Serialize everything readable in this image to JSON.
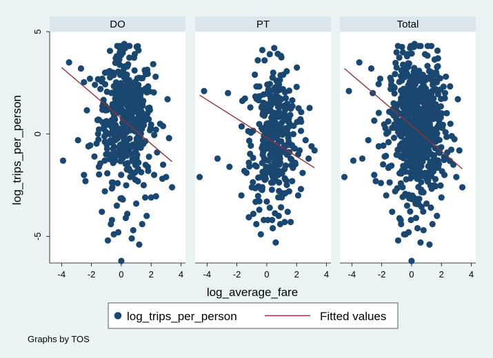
{
  "chart_data": {
    "type": "scatter",
    "layout": "by-group panels",
    "xlabel": "log_average_fare",
    "ylabel": "log_trips_per_person",
    "xlim": [
      -4.8,
      4.3
    ],
    "ylim": [
      -6.3,
      5.0
    ],
    "x_ticks": [
      -4,
      -2,
      0,
      2,
      4
    ],
    "y_ticks": [
      -5,
      0,
      5
    ],
    "grid": false,
    "legend": {
      "position": "bottom-center",
      "labels": [
        "log_trips_per_person",
        "Fitted values"
      ]
    },
    "note": "Graphs by TOS",
    "colors": {
      "points": "#1a476f",
      "fit": "#90353b",
      "panel_header": "#d9e6eb",
      "background": "#eaf2f3",
      "plot": "#ffffff"
    },
    "panels": [
      {
        "name": "DO",
        "fit": {
          "x": [
            -4.0,
            3.4
          ],
          "y": [
            3.25,
            -1.35
          ]
        },
        "points": [
          [
            -3.9,
            -1.3
          ],
          [
            -3.5,
            3.5
          ],
          [
            -2.9,
            -0.3
          ],
          [
            -2.7,
            3.2
          ],
          [
            -2.5,
            -2.0
          ],
          [
            -2.4,
            -2.3
          ],
          [
            -2.2,
            -0.6
          ],
          [
            -2.1,
            2.7
          ],
          [
            -1.8,
            -1.1
          ],
          [
            -1.5,
            -1.6
          ],
          [
            -1.3,
            -3.8
          ],
          [
            -1.2,
            1.5
          ],
          [
            -1.1,
            -2.8
          ],
          [
            -0.9,
            -5.2
          ],
          [
            -0.8,
            -1.0
          ],
          [
            -0.6,
            -2.6
          ],
          [
            -0.5,
            -4.9
          ],
          [
            -0.4,
            -0.3
          ],
          [
            -0.3,
            -3.5
          ],
          [
            -0.2,
            -4.8
          ],
          [
            0.0,
            -6.2
          ],
          [
            0.1,
            -3.2
          ],
          [
            0.3,
            -4.1
          ],
          [
            0.4,
            -3.9
          ],
          [
            0.6,
            -2.1
          ],
          [
            0.8,
            -4.7
          ],
          [
            1.0,
            -3.4
          ],
          [
            1.2,
            -5.4
          ],
          [
            1.5,
            -2.5
          ],
          [
            1.7,
            -4.0
          ],
          [
            2.0,
            -3.1
          ],
          [
            2.2,
            -2.0
          ],
          [
            2.4,
            -0.9
          ],
          [
            2.6,
            0.5
          ],
          [
            2.8,
            -1.5
          ],
          [
            3.0,
            -2.1
          ],
          [
            3.2,
            -0.2
          ],
          [
            3.4,
            -2.6
          ],
          [
            3.1,
            1.7
          ],
          [
            2.3,
            2.8
          ],
          [
            1.8,
            -1.8
          ],
          [
            0.9,
            3.9
          ],
          [
            0.5,
            4.3
          ],
          [
            0.2,
            4.4
          ],
          [
            -0.1,
            4.2
          ],
          [
            -0.3,
            3.8
          ],
          [
            -1.4,
            2.2
          ],
          [
            1.6,
            -3.1
          ],
          [
            1.4,
            -4.4
          ],
          [
            -0.7,
            -4.4
          ],
          [
            0.7,
            -5.1
          ]
        ],
        "cluster": {
          "x_mean": 0.3,
          "x_sd": 0.9,
          "y_mean": 0.8,
          "y_sd": 1.5,
          "n": 430
        }
      },
      {
        "name": "PT",
        "fit": {
          "x": [
            -4.5,
            3.2
          ],
          "y": [
            1.9,
            -1.65
          ]
        },
        "points": [
          [
            -4.5,
            -2.1
          ],
          [
            -4.2,
            2.1
          ],
          [
            -3.3,
            -1.2
          ],
          [
            -2.5,
            -1.6
          ],
          [
            -1.7,
            -3.0
          ],
          [
            -1.5,
            -1.8
          ],
          [
            -1.2,
            -1.4
          ],
          [
            -1.0,
            -2.6
          ],
          [
            -0.9,
            -3.9
          ],
          [
            -0.7,
            -4.4
          ],
          [
            -0.5,
            -3.7
          ],
          [
            -0.4,
            -4.9
          ],
          [
            -0.2,
            -4.2
          ],
          [
            0.0,
            -3.3
          ],
          [
            0.2,
            -3.6
          ],
          [
            0.4,
            -4.6
          ],
          [
            0.6,
            -5.3
          ],
          [
            0.8,
            -4.0
          ],
          [
            1.0,
            -3.1
          ],
          [
            1.2,
            -4.3
          ],
          [
            1.4,
            -3.8
          ],
          [
            1.5,
            -2.8
          ],
          [
            1.7,
            -2.3
          ],
          [
            1.9,
            -1.4
          ],
          [
            2.1,
            -3.0
          ],
          [
            2.2,
            -0.8
          ],
          [
            2.4,
            -1.9
          ],
          [
            2.6,
            -0.3
          ],
          [
            2.8,
            -1.2
          ],
          [
            3.0,
            -0.6
          ],
          [
            3.2,
            -0.8
          ],
          [
            2.0,
            2.3
          ],
          [
            1.1,
            2.9
          ],
          [
            0.5,
            4.2
          ],
          [
            0.2,
            3.9
          ],
          [
            -0.3,
            4.1
          ],
          [
            -0.6,
            3.6
          ],
          [
            -0.8,
            2.9
          ],
          [
            -2.6,
            2.0
          ],
          [
            -1.1,
            1.3
          ],
          [
            1.8,
            0.4
          ],
          [
            2.3,
            0.6
          ],
          [
            1.6,
            -4.3
          ],
          [
            0.9,
            -4.4
          ],
          [
            -0.3,
            -2.6
          ]
        ],
        "cluster": {
          "x_mean": 0.5,
          "x_sd": 0.75,
          "y_mean": 0.0,
          "y_sd": 1.6,
          "n": 330
        }
      },
      {
        "name": "Total",
        "fit": {
          "x": [
            -4.5,
            3.4
          ],
          "y": [
            3.2,
            -1.7
          ]
        },
        "points": [
          [
            -4.5,
            -2.1
          ],
          [
            -4.2,
            2.1
          ],
          [
            -3.9,
            -1.3
          ],
          [
            -3.5,
            3.5
          ],
          [
            -3.3,
            -1.2
          ],
          [
            -2.9,
            -0.3
          ],
          [
            -2.7,
            3.2
          ],
          [
            -2.5,
            -2.0
          ],
          [
            -2.4,
            -2.3
          ],
          [
            -2.2,
            -0.6
          ],
          [
            -2.1,
            2.7
          ],
          [
            -1.8,
            -1.1
          ],
          [
            -1.7,
            -3.0
          ],
          [
            -1.5,
            -1.6
          ],
          [
            -1.3,
            -3.8
          ],
          [
            -1.2,
            1.5
          ],
          [
            -1.1,
            -2.8
          ],
          [
            -0.9,
            -5.2
          ],
          [
            -0.7,
            -4.4
          ],
          [
            -0.6,
            -2.6
          ],
          [
            -0.5,
            -4.9
          ],
          [
            -0.4,
            -4.9
          ],
          [
            -0.3,
            -3.5
          ],
          [
            -0.2,
            -4.8
          ],
          [
            0.0,
            -6.2
          ],
          [
            0.1,
            -3.2
          ],
          [
            0.3,
            -4.1
          ],
          [
            0.4,
            -4.6
          ],
          [
            0.6,
            -5.3
          ],
          [
            0.8,
            -4.7
          ],
          [
            1.0,
            -3.4
          ],
          [
            1.2,
            -5.4
          ],
          [
            1.4,
            -4.4
          ],
          [
            1.5,
            -2.5
          ],
          [
            1.7,
            -4.0
          ],
          [
            2.0,
            -3.1
          ],
          [
            2.2,
            -2.0
          ],
          [
            2.4,
            -0.9
          ],
          [
            2.6,
            0.5
          ],
          [
            2.8,
            -1.5
          ],
          [
            3.0,
            -2.1
          ],
          [
            3.2,
            -0.8
          ],
          [
            3.4,
            -2.6
          ],
          [
            3.1,
            1.7
          ],
          [
            2.3,
            2.8
          ],
          [
            0.9,
            3.9
          ],
          [
            0.5,
            4.3
          ],
          [
            0.2,
            4.4
          ],
          [
            -0.1,
            4.2
          ],
          [
            -0.3,
            3.8
          ],
          [
            -1.4,
            2.2
          ],
          [
            -2.6,
            2.0
          ]
        ],
        "cluster": {
          "x_mean": 0.35,
          "x_sd": 0.85,
          "y_mean": 0.4,
          "y_sd": 1.6,
          "n": 700
        }
      }
    ]
  }
}
